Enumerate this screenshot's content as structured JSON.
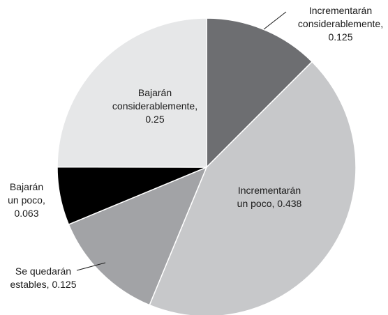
{
  "chart_data": {
    "type": "pie",
    "title": "",
    "slices": [
      {
        "label_lines": [
          "Incrementarán",
          "considerablemente,",
          "0.125"
        ],
        "value": 0.125,
        "color": "#6d6e71"
      },
      {
        "label_lines": [
          "Incrementarán",
          "un poco, 0.438"
        ],
        "value": 0.438,
        "color": "#c7c8ca"
      },
      {
        "label_lines": [
          "Se quedarán",
          "estables, 0.125"
        ],
        "value": 0.125,
        "color": "#a2a3a6"
      },
      {
        "label_lines": [
          "Bajarán",
          "un poco,",
          "0.063"
        ],
        "value": 0.063,
        "color": "#000000"
      },
      {
        "label_lines": [
          "Bajarán",
          "considerablemente,",
          "0.25"
        ],
        "value": 0.25,
        "color": "#e6e7e8"
      }
    ],
    "start_angle": "12 o'clock",
    "direction": "clockwise"
  }
}
